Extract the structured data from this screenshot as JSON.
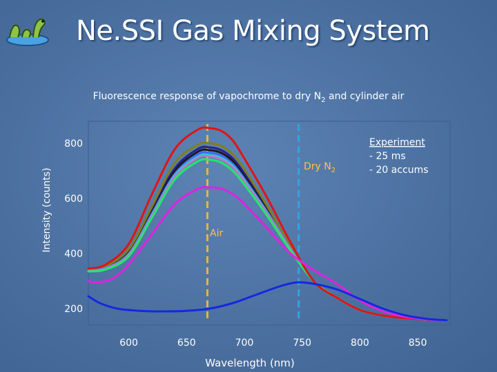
{
  "slide": {
    "title": "Ne.SSI Gas Mixing System",
    "logo_icon": "sea-serpent-logo-icon"
  },
  "chart_data": {
    "type": "line",
    "title_parts": [
      "Fluorescence response of vapochrome to dry N",
      "2",
      " and cylinder air"
    ],
    "xlabel": "Wavelength (nm)",
    "ylabel": "Intensity (counts)",
    "xlim": [
      565,
      878
    ],
    "ylim": [
      140,
      880
    ],
    "xticks": [
      600,
      650,
      700,
      750,
      800,
      850
    ],
    "yticks": [
      200,
      400,
      600,
      800
    ],
    "grid": false,
    "legend": "none",
    "annotations": {
      "dry_n2": [
        "Dry N",
        "2"
      ],
      "air": "Air",
      "experiment": [
        "Experiment",
        "- 25 ms",
        "- 20 accums"
      ]
    },
    "reference_lines": [
      {
        "label": "air_peak_line",
        "x": 668,
        "color": "#f2b33a"
      },
      {
        "label": "dry_n2_peak_line",
        "x": 747,
        "color": "#2fa5e6"
      }
    ],
    "series": [
      {
        "color": "#2a1f8c",
        "x": [
          565,
          580,
          600,
          620,
          640,
          660,
          670,
          680,
          690,
          700,
          720,
          740,
          760,
          780,
          800,
          820,
          840,
          860,
          875
        ],
        "y": [
          340,
          350,
          410,
          560,
          710,
          780,
          785,
          775,
          745,
          690,
          560,
          420,
          300,
          240,
          195,
          175,
          165,
          160,
          158
        ]
      },
      {
        "color": "#1a1a1a",
        "x": [
          565,
          580,
          600,
          620,
          640,
          660,
          670,
          680,
          690,
          700,
          720,
          740,
          760,
          780,
          800,
          820,
          840,
          860,
          875
        ],
        "y": [
          340,
          350,
          405,
          550,
          700,
          770,
          775,
          765,
          735,
          680,
          555,
          420,
          300,
          240,
          195,
          175,
          165,
          160,
          158
        ]
      },
      {
        "color": "#7f7f1a",
        "x": [
          565,
          580,
          600,
          620,
          640,
          660,
          670,
          680,
          690,
          700,
          720,
          740,
          760,
          780,
          800,
          820,
          840,
          860,
          875
        ],
        "y": [
          345,
          355,
          415,
          570,
          730,
          795,
          800,
          790,
          760,
          705,
          570,
          425,
          300,
          240,
          195,
          175,
          165,
          160,
          158
        ]
      },
      {
        "color": "#3f6cff",
        "x": [
          565,
          580,
          600,
          620,
          640,
          660,
          670,
          680,
          690,
          700,
          720,
          740,
          760,
          780,
          800,
          820,
          840,
          860,
          875
        ],
        "y": [
          340,
          348,
          400,
          545,
          690,
          760,
          765,
          755,
          725,
          672,
          550,
          418,
          300,
          240,
          195,
          175,
          165,
          160,
          158
        ]
      },
      {
        "color": "#2fd0d0",
        "x": [
          565,
          580,
          600,
          620,
          640,
          660,
          670,
          680,
          690,
          700,
          720,
          740,
          760,
          780,
          800,
          820,
          840,
          860,
          875
        ],
        "y": [
          338,
          346,
          398,
          540,
          685,
          752,
          757,
          747,
          718,
          666,
          546,
          416,
          300,
          240,
          195,
          175,
          165,
          160,
          158
        ]
      },
      {
        "color": "#b07cc6",
        "x": [
          565,
          580,
          600,
          620,
          640,
          660,
          670,
          680,
          690,
          700,
          720,
          740,
          760,
          780,
          800,
          820,
          840,
          860,
          875
        ],
        "y": [
          338,
          346,
          396,
          538,
          680,
          748,
          752,
          742,
          713,
          662,
          544,
          415,
          300,
          240,
          195,
          175,
          165,
          160,
          158
        ]
      },
      {
        "color": "#22e86a",
        "x": [
          565,
          580,
          600,
          620,
          640,
          660,
          670,
          680,
          690,
          700,
          720,
          740,
          760,
          780,
          800,
          820,
          840,
          860,
          875
        ],
        "y": [
          335,
          342,
          390,
          530,
          670,
          735,
          740,
          730,
          700,
          650,
          535,
          410,
          300,
          240,
          195,
          175,
          165,
          160,
          158
        ]
      },
      {
        "color": "#e01414",
        "x": [
          565,
          580,
          600,
          620,
          640,
          660,
          670,
          680,
          690,
          700,
          720,
          740,
          760,
          780,
          800,
          820,
          840,
          860,
          875
        ],
        "y": [
          345,
          360,
          435,
          615,
          780,
          850,
          855,
          845,
          810,
          745,
          600,
          440,
          300,
          240,
          195,
          175,
          165,
          160,
          158
        ]
      },
      {
        "color": "#e022e0",
        "x": [
          565,
          570,
          580,
          590,
          600,
          620,
          640,
          660,
          670,
          680,
          690,
          700,
          720,
          740,
          760,
          780,
          800,
          820,
          840,
          860,
          875
        ],
        "y": [
          300,
          295,
          300,
          320,
          360,
          470,
          580,
          635,
          640,
          635,
          615,
          580,
          490,
          400,
          340,
          290,
          230,
          190,
          170,
          160,
          158
        ]
      },
      {
        "color": "#1428e0",
        "x": [
          565,
          575,
          590,
          610,
          630,
          650,
          670,
          690,
          710,
          730,
          745,
          760,
          780,
          800,
          820,
          840,
          860,
          875
        ],
        "y": [
          245,
          220,
          200,
          192,
          190,
          192,
          200,
          220,
          250,
          280,
          295,
          290,
          270,
          235,
          200,
          175,
          162,
          158
        ]
      }
    ]
  }
}
